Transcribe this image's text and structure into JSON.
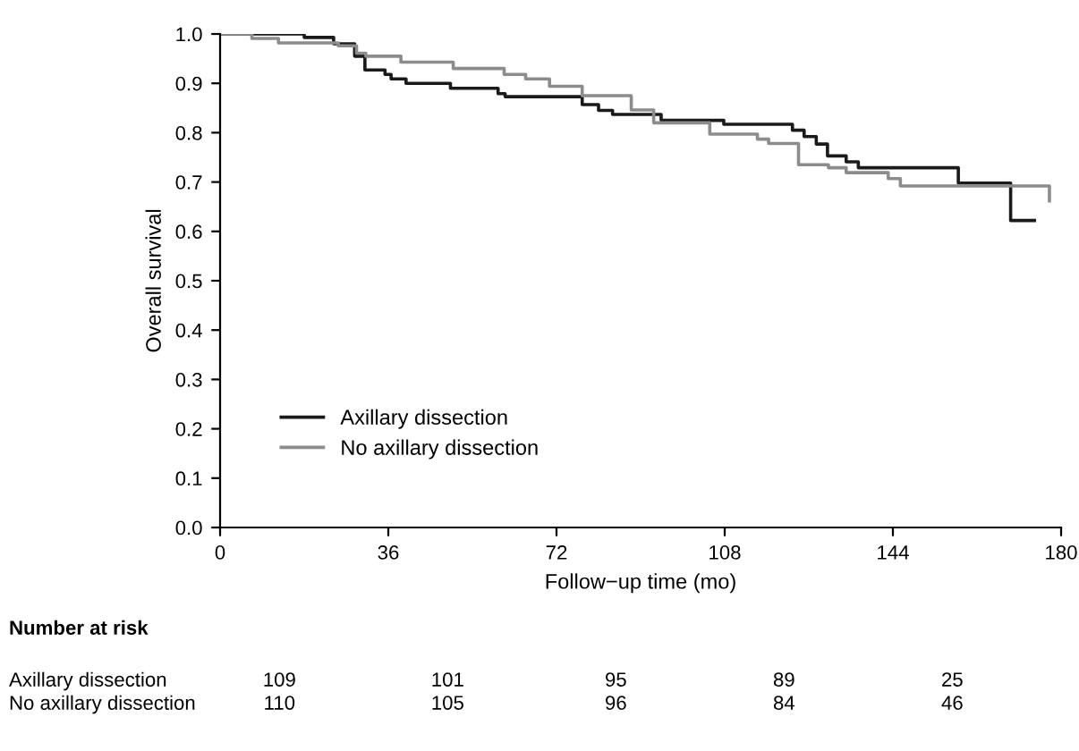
{
  "chart_data": {
    "type": "step",
    "xlabel": "Follow−up time (mo)",
    "ylabel": "Overall survival",
    "xlim": [
      0,
      180
    ],
    "xticks": [
      0,
      36,
      72,
      108,
      144,
      180
    ],
    "ylim": [
      0,
      1.0
    ],
    "yticks": [
      {
        "value": 0,
        "label": "0.0"
      },
      0.1,
      0.2,
      0.3,
      0.4,
      0.5,
      0.6,
      0.7,
      0.8,
      0.9,
      {
        "value": 1,
        "label": "1.0"
      }
    ],
    "legend": "bottom left",
    "grid": false,
    "marker": "none",
    "line_style": "solid",
    "series": [
      {
        "name": "Axillary dissection",
        "color": "#1a1a1a",
        "x": [
          0,
          18,
          24.3,
          28.8,
          31,
          35.3,
          36.6,
          39.8,
          49.3,
          59.5,
          61,
          77.5,
          81,
          84,
          94.4,
          107.8,
          122.5,
          125,
          127.6,
          130,
          134,
          136.6,
          158,
          169.2,
          174.3
        ],
        "values": [
          1.0,
          0.993,
          0.98,
          0.955,
          0.927,
          0.918,
          0.909,
          0.9,
          0.89,
          0.879,
          0.873,
          0.857,
          0.845,
          0.837,
          0.825,
          0.817,
          0.805,
          0.792,
          0.777,
          0.753,
          0.741,
          0.729,
          0.698,
          0.622,
          0.622
        ]
      },
      {
        "name": "No axillary dissection",
        "color": "#8c8c8c",
        "x": [
          0,
          6.8,
          12.5,
          25.3,
          29.2,
          31.2,
          38.7,
          49.9,
          60.8,
          65.4,
          70.5,
          77.5,
          88,
          92.8,
          104.8,
          115,
          117.4,
          123.8,
          130.2,
          134,
          143,
          145.6,
          177.5
        ],
        "values": [
          1.0,
          0.991,
          0.982,
          0.976,
          0.961,
          0.955,
          0.943,
          0.93,
          0.918,
          0.909,
          0.894,
          0.875,
          0.846,
          0.82,
          0.797,
          0.787,
          0.778,
          0.735,
          0.729,
          0.719,
          0.707,
          0.692,
          0.662
        ]
      }
    ],
    "annotations": [
      "Number at risk",
      "Axillary dissection",
      "109",
      "101",
      "95",
      "89",
      "25",
      "No axillary dissection",
      "110",
      "105",
      "96",
      "84",
      "46"
    ]
  }
}
